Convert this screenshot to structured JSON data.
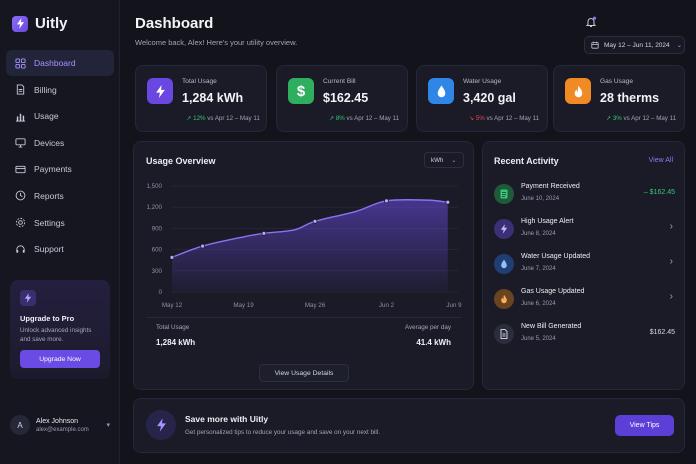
{
  "app": {
    "name": "Uitly"
  },
  "nav": [
    {
      "label": "Dashboard",
      "icon": "grid-icon",
      "active": true
    },
    {
      "label": "Billing",
      "icon": "document-icon"
    },
    {
      "label": "Usage",
      "icon": "bar-chart-icon"
    },
    {
      "label": "Devices",
      "icon": "monitor-icon"
    },
    {
      "label": "Payments",
      "icon": "credit-card-icon"
    },
    {
      "label": "Reports",
      "icon": "clock-icon"
    },
    {
      "label": "Settings",
      "icon": "gear-icon"
    },
    {
      "label": "Support",
      "icon": "headset-icon"
    }
  ],
  "upgrade": {
    "title": "Upgrade to Pro",
    "description": "Unlock advanced insights and save more.",
    "button": "Upgrade Now"
  },
  "user": {
    "initial": "A",
    "name": "Alex Johnson",
    "email": "alex@example.com"
  },
  "header": {
    "title": "Dashboard",
    "subtitle": "Welcome back, Alex! Here's your utility overview.",
    "date_range": "May 12 – Jun 11, 2024"
  },
  "stats": [
    {
      "label": "Total Usage",
      "value": "1,284 kWh",
      "change": "12%",
      "direction": "up",
      "compare": "vs Apr 12 – May 11",
      "color": "#6a47e0",
      "icon": "bolt-icon"
    },
    {
      "label": "Current Bill",
      "value": "$162.45",
      "change": "8%",
      "direction": "up",
      "compare": "vs Apr 12 – May 11",
      "color": "#2fae5f",
      "icon": "dollar-icon"
    },
    {
      "label": "Water Usage",
      "value": "3,420 gal",
      "change": "5%",
      "direction": "down",
      "compare": "vs Apr 12 – May 11",
      "color": "#2f86e6",
      "icon": "droplet-icon"
    },
    {
      "label": "Gas Usage",
      "value": "28 therms",
      "change": "3%",
      "direction": "up",
      "compare": "vs Apr 12 – May 11",
      "color": "#f08a24",
      "icon": "flame-icon"
    }
  ],
  "usage_overview": {
    "title": "Usage Overview",
    "unit_selector": "kWh",
    "total_label": "Total Usage",
    "total_value": "1,284 kWh",
    "avg_label": "Average per day",
    "avg_value": "41.4 kWh",
    "button": "View Usage Details"
  },
  "chart_data": {
    "type": "area",
    "x": [
      "May 12",
      "May 19",
      "May 26",
      "Jun 2",
      "Jun 9"
    ],
    "y_ticks": [
      "0",
      "300",
      "600",
      "900",
      "1,200",
      "1,500"
    ],
    "ylim": [
      0,
      1500
    ],
    "points": [
      {
        "d": 0,
        "y": 490
      },
      {
        "d": 3,
        "y": 650
      },
      {
        "d": 7,
        "y": 780
      },
      {
        "d": 9,
        "y": 830
      },
      {
        "d": 12,
        "y": 880
      },
      {
        "d": 14,
        "y": 1000
      },
      {
        "d": 18,
        "y": 1140
      },
      {
        "d": 21,
        "y": 1290
      },
      {
        "d": 25,
        "y": 1300
      },
      {
        "d": 27,
        "y": 1270
      }
    ],
    "markers": [
      0,
      3,
      9,
      14,
      21,
      27
    ],
    "series": [
      {
        "name": "kWh",
        "color": "#8c72f0"
      }
    ],
    "grid": true
  },
  "activity": {
    "title": "Recent Activity",
    "view_all": "View All",
    "items": [
      {
        "title": "Payment Received",
        "date": "June 10, 2024",
        "amount": "– $162.45",
        "amount_color": "#35c77a",
        "icon": "receipt-icon",
        "icon_color": "#1f5a39"
      },
      {
        "title": "High Usage Alert",
        "date": "June 8, 2024",
        "chevron": "›",
        "icon": "bolt-icon",
        "icon_color": "#3b2f75"
      },
      {
        "title": "Water Usage Updated",
        "date": "June 7, 2024",
        "chevron": "›",
        "icon": "droplet-icon",
        "icon_color": "#1f3f73"
      },
      {
        "title": "Gas Usage Updated",
        "date": "June 6, 2024",
        "chevron": "›",
        "icon": "flame-icon",
        "icon_color": "#6a4320"
      },
      {
        "title": "New Bill Generated",
        "date": "June 5, 2024",
        "amount": "$162.45",
        "amount_color": "#d8d9e4",
        "icon": "document-icon",
        "icon_color": "#2b2d3c"
      }
    ]
  },
  "tips": {
    "title": "Save more with Uitly",
    "description": "Get personalized tips to reduce your usage and save on your next bill.",
    "button": "View Tips"
  }
}
